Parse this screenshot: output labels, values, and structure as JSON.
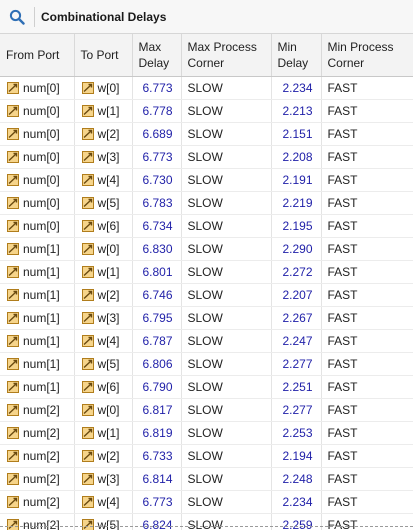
{
  "toolbar": {
    "title": "Combinational Delays",
    "search_icon": "search-icon"
  },
  "columns": {
    "from_port": "From Port",
    "to_port": "To Port",
    "max_delay": [
      "Max",
      "Delay"
    ],
    "max_corner": [
      "Max Process",
      "Corner"
    ],
    "min_delay": [
      "Min",
      "Delay"
    ],
    "min_corner": [
      "Min Process",
      "Corner"
    ]
  },
  "colors": {
    "value_text": "#1f1fa8",
    "icon_fill": "#e8b24a",
    "header_bg": "#f3f3f3"
  },
  "rows": [
    {
      "from": "num[0]",
      "to": "w[0]",
      "max": "6.773",
      "max_corner": "SLOW",
      "min": "2.234",
      "min_corner": "FAST"
    },
    {
      "from": "num[0]",
      "to": "w[1]",
      "max": "6.778",
      "max_corner": "SLOW",
      "min": "2.213",
      "min_corner": "FAST"
    },
    {
      "from": "num[0]",
      "to": "w[2]",
      "max": "6.689",
      "max_corner": "SLOW",
      "min": "2.151",
      "min_corner": "FAST"
    },
    {
      "from": "num[0]",
      "to": "w[3]",
      "max": "6.773",
      "max_corner": "SLOW",
      "min": "2.208",
      "min_corner": "FAST"
    },
    {
      "from": "num[0]",
      "to": "w[4]",
      "max": "6.730",
      "max_corner": "SLOW",
      "min": "2.191",
      "min_corner": "FAST"
    },
    {
      "from": "num[0]",
      "to": "w[5]",
      "max": "6.783",
      "max_corner": "SLOW",
      "min": "2.219",
      "min_corner": "FAST"
    },
    {
      "from": "num[0]",
      "to": "w[6]",
      "max": "6.734",
      "max_corner": "SLOW",
      "min": "2.195",
      "min_corner": "FAST"
    },
    {
      "from": "num[1]",
      "to": "w[0]",
      "max": "6.830",
      "max_corner": "SLOW",
      "min": "2.290",
      "min_corner": "FAST"
    },
    {
      "from": "num[1]",
      "to": "w[1]",
      "max": "6.801",
      "max_corner": "SLOW",
      "min": "2.272",
      "min_corner": "FAST"
    },
    {
      "from": "num[1]",
      "to": "w[2]",
      "max": "6.746",
      "max_corner": "SLOW",
      "min": "2.207",
      "min_corner": "FAST"
    },
    {
      "from": "num[1]",
      "to": "w[3]",
      "max": "6.795",
      "max_corner": "SLOW",
      "min": "2.267",
      "min_corner": "FAST"
    },
    {
      "from": "num[1]",
      "to": "w[4]",
      "max": "6.787",
      "max_corner": "SLOW",
      "min": "2.247",
      "min_corner": "FAST"
    },
    {
      "from": "num[1]",
      "to": "w[5]",
      "max": "6.806",
      "max_corner": "SLOW",
      "min": "2.277",
      "min_corner": "FAST"
    },
    {
      "from": "num[1]",
      "to": "w[6]",
      "max": "6.790",
      "max_corner": "SLOW",
      "min": "2.251",
      "min_corner": "FAST"
    },
    {
      "from": "num[2]",
      "to": "w[0]",
      "max": "6.817",
      "max_corner": "SLOW",
      "min": "2.277",
      "min_corner": "FAST"
    },
    {
      "from": "num[2]",
      "to": "w[1]",
      "max": "6.819",
      "max_corner": "SLOW",
      "min": "2.253",
      "min_corner": "FAST"
    },
    {
      "from": "num[2]",
      "to": "w[2]",
      "max": "6.733",
      "max_corner": "SLOW",
      "min": "2.194",
      "min_corner": "FAST"
    },
    {
      "from": "num[2]",
      "to": "w[3]",
      "max": "6.814",
      "max_corner": "SLOW",
      "min": "2.248",
      "min_corner": "FAST"
    },
    {
      "from": "num[2]",
      "to": "w[4]",
      "max": "6.773",
      "max_corner": "SLOW",
      "min": "2.234",
      "min_corner": "FAST"
    },
    {
      "from": "num[2]",
      "to": "w[5]",
      "max": "6.824",
      "max_corner": "SLOW",
      "min": "2.259",
      "min_corner": "FAST"
    }
  ]
}
